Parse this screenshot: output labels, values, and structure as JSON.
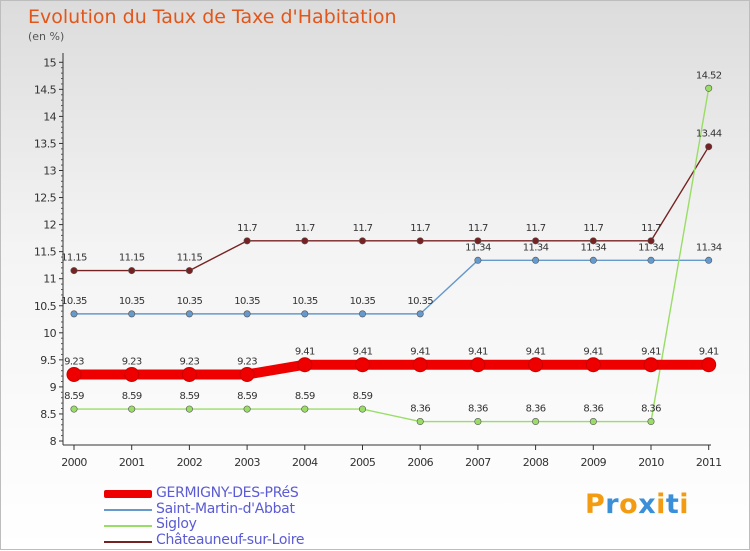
{
  "chart_data": {
    "type": "line",
    "title": "Evolution du Taux de Taxe d'Habitation",
    "ylabel": "(en %)",
    "x": [
      "2000",
      "2001",
      "2002",
      "2003",
      "2004",
      "2005",
      "2006",
      "2007",
      "2008",
      "2009",
      "2010",
      "2011"
    ],
    "ylim": [
      8,
      15
    ],
    "yticks": [
      "8",
      "8.5",
      "9",
      "9.5",
      "10",
      "10.5",
      "11",
      "11.5",
      "12",
      "12.5",
      "13",
      "13.5",
      "14",
      "14.5",
      "15"
    ],
    "grid": false,
    "legend_position": "bottom-left",
    "series": [
      {
        "name": "GERMIGNY-DES-PRéS",
        "color": "#ee0000",
        "values": [
          9.23,
          9.23,
          9.23,
          9.23,
          9.41,
          9.41,
          9.41,
          9.41,
          9.41,
          9.41,
          9.41,
          9.41
        ],
        "labels": [
          "9.23",
          "9.23",
          "9.23",
          "9.23",
          "9.41",
          "9.41",
          "9.41",
          "9.41",
          "9.41",
          "9.41",
          "9.41",
          "9.41"
        ]
      },
      {
        "name": "Saint-Martin-d'Abbat",
        "color": "#6699cc",
        "values": [
          10.35,
          10.35,
          10.35,
          10.35,
          10.35,
          10.35,
          10.35,
          11.34,
          11.34,
          11.34,
          11.34,
          11.34
        ],
        "labels": [
          "10.35",
          "10.35",
          "10.35",
          "10.35",
          "10.35",
          "10.35",
          "10.35",
          "11.34",
          "11.34",
          "11.34",
          "11.34",
          "11.34"
        ]
      },
      {
        "name": "Sigloy",
        "color": "#99dd66",
        "values": [
          8.59,
          8.59,
          8.59,
          8.59,
          8.59,
          8.59,
          8.36,
          8.36,
          8.36,
          8.36,
          8.36,
          14.52
        ],
        "labels": [
          "8.59",
          "8.59",
          "8.59",
          "8.59",
          "8.59",
          "8.59",
          "8.36",
          "8.36",
          "8.36",
          "8.36",
          "8.36",
          "14.52"
        ]
      },
      {
        "name": "Châteauneuf-sur-Loire",
        "color": "#772222",
        "values": [
          11.15,
          11.15,
          11.15,
          11.7,
          11.7,
          11.7,
          11.7,
          11.7,
          11.7,
          11.7,
          11.7,
          13.44
        ],
        "labels": [
          "11.15",
          "11.15",
          "11.15",
          "11.7",
          "11.7",
          "11.7",
          "11.7",
          "11.7",
          "11.7",
          "11.7",
          "11.7",
          "13.44"
        ]
      }
    ]
  },
  "logo": {
    "letters": [
      "P",
      "r",
      "o",
      "x",
      "i",
      "t",
      "i"
    ],
    "colors": [
      "#f39c12",
      "#3b8fd9",
      "#f39c12",
      "#3b8fd9",
      "#f39c12",
      "#3b8fd9",
      "#f39c12"
    ]
  }
}
